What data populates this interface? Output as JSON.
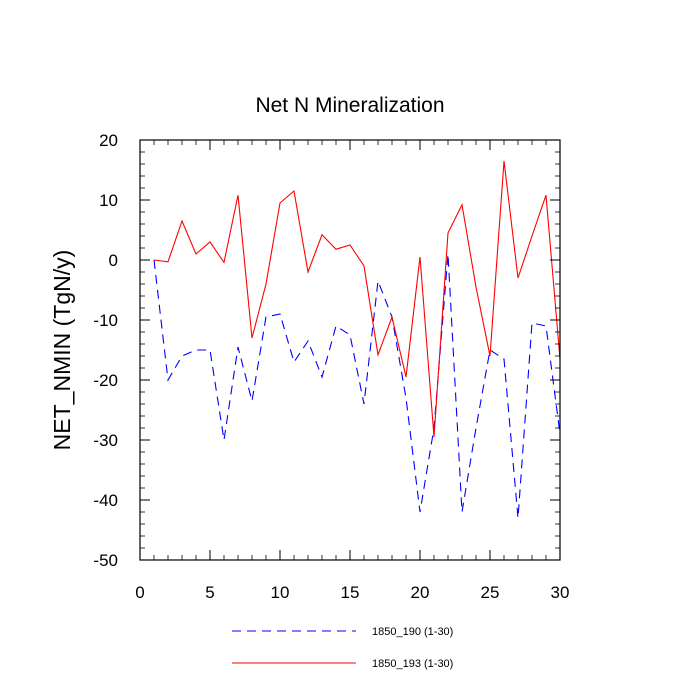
{
  "chart_data": {
    "type": "line",
    "title": "Net N Mineralization",
    "xlabel": "",
    "ylabel": "NET_NMIN  (TgN/y)",
    "xlim": [
      0,
      30
    ],
    "ylim": [
      -50,
      20
    ],
    "xticks": [
      0,
      5,
      10,
      15,
      20,
      25,
      30
    ],
    "yticks": [
      -50,
      -40,
      -30,
      -20,
      -10,
      0,
      10,
      20
    ],
    "grid": false,
    "legend_position": "bottom-center",
    "series": [
      {
        "name": "1850_190 (1-30)",
        "color": "#0000ff",
        "style": "dashed",
        "x": [
          1,
          2,
          3,
          4,
          5,
          6,
          7,
          8,
          9,
          10,
          11,
          12,
          13,
          14,
          15,
          16,
          17,
          18,
          19,
          20,
          21,
          22,
          23,
          24,
          25,
          26,
          27,
          28,
          29,
          30
        ],
        "y": [
          0,
          -20,
          -16,
          -15,
          -15,
          -30,
          -14.5,
          -23.5,
          -9.5,
          -9,
          -17,
          -13.5,
          -19.5,
          -11,
          -12.5,
          -24,
          -3.5,
          -9.5,
          -23,
          -42,
          -28,
          1,
          -42,
          -28,
          -15,
          -16.5,
          -43,
          -10.5,
          -11,
          -29
        ]
      },
      {
        "name": "1850_193 (1-30)",
        "color": "#ff0000",
        "style": "solid",
        "x": [
          1,
          2,
          3,
          4,
          5,
          6,
          7,
          8,
          9,
          10,
          11,
          12,
          13,
          14,
          15,
          16,
          17,
          18,
          19,
          20,
          21,
          22,
          23,
          24,
          25,
          26,
          27,
          28,
          29,
          30
        ],
        "y": [
          0,
          -0.3,
          6.5,
          1,
          3,
          -0.4,
          10.8,
          -13,
          -4,
          9.5,
          11.5,
          -2,
          4.2,
          1.8,
          2.5,
          -1,
          -15.8,
          -9.5,
          -19.5,
          0.5,
          -29.5,
          4.5,
          9.2,
          -4.5,
          -16,
          16.5,
          -3,
          4,
          10.8,
          -16.5
        ]
      }
    ]
  }
}
